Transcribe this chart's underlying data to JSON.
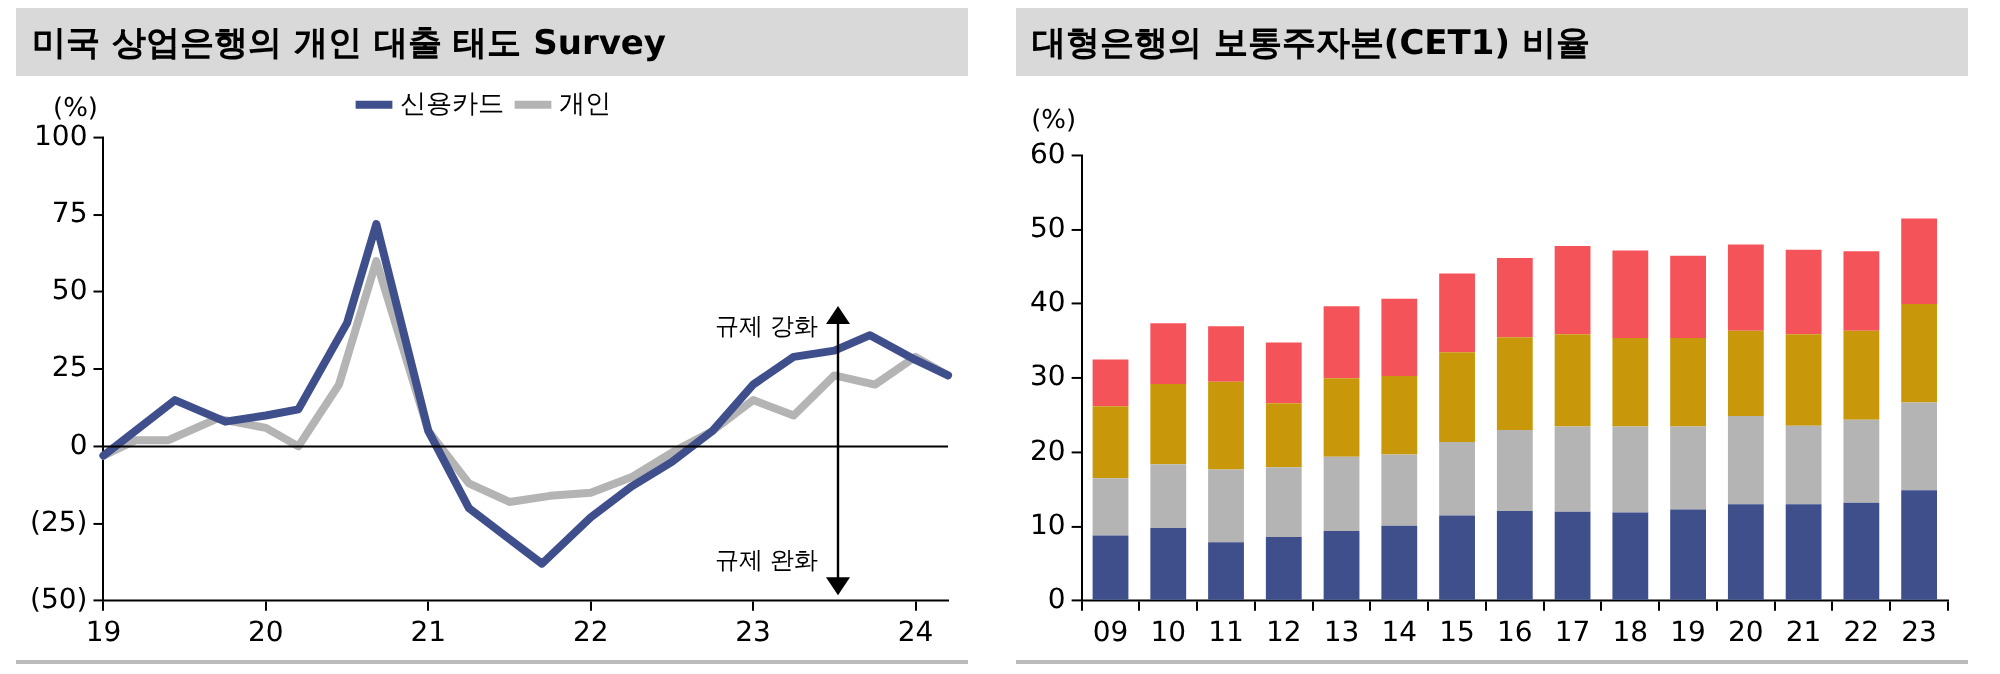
{
  "chart_data": [
    {
      "type": "line",
      "title": "미국 상업은행의 개인 대출 태도 Survey",
      "ylabel": "(%)",
      "legend": "top",
      "grid": false,
      "marker": "none",
      "line_style": "solid",
      "annotations": [
        "규제 강화",
        "규제 완화"
      ],
      "xlim": [
        2019,
        2024.2
      ],
      "xticks": [
        {
          "value": 2019,
          "label": "19"
        },
        {
          "value": 2020,
          "label": "20"
        },
        {
          "value": 2021,
          "label": "21"
        },
        {
          "value": 2022,
          "label": "22"
        },
        {
          "value": 2023,
          "label": "23"
        },
        {
          "value": 2024,
          "label": "24"
        }
      ],
      "ylim": [
        -50,
        100
      ],
      "yticks": [
        {
          "value": -50,
          "label": "(50)"
        },
        {
          "value": -25,
          "label": "(25)"
        },
        0,
        25,
        50,
        75,
        100
      ],
      "ref_lines": [
        {
          "axis": "y",
          "value": 0,
          "color": "#000000"
        }
      ],
      "series": [
        {
          "name": "신용카드",
          "color": "#3f4f8c",
          "x": [
            2019,
            2019.44,
            2019.75,
            2020,
            2020.2,
            2020.5,
            2020.68,
            2021,
            2021.25,
            2021.5,
            2021.7,
            2022,
            2022.25,
            2022.5,
            2022.75,
            2023,
            2023.25,
            2023.5,
            2023.72,
            2024,
            2024.2
          ],
          "values": [
            -3,
            15,
            8,
            10,
            12,
            40,
            72,
            5,
            -20,
            -30,
            -38,
            -23,
            -13,
            -5,
            5,
            20,
            29,
            31,
            36,
            28,
            23
          ]
        },
        {
          "name": "개인",
          "color": "#b4b4b4",
          "x": [
            2019,
            2019.2,
            2019.4,
            2019.7,
            2020,
            2020.2,
            2020.45,
            2020.68,
            2021,
            2021.25,
            2021.5,
            2021.75,
            2022,
            2022.25,
            2022.5,
            2022.75,
            2023,
            2023.25,
            2023.5,
            2023.75,
            2024,
            2024.2
          ],
          "values": [
            -3,
            2,
            2,
            9,
            6,
            0,
            20,
            60,
            5,
            -12,
            -18,
            -16,
            -15,
            -10,
            -2,
            5,
            15,
            10,
            23,
            20,
            29,
            23
          ]
        }
      ]
    },
    {
      "type": "bar",
      "stacked": true,
      "title": "대형은행의 보통주자본(CET1) 비율",
      "ylabel": "(%)",
      "grid": false,
      "categories": [
        "09",
        "10",
        "11",
        "12",
        "13",
        "14",
        "15",
        "16",
        "17",
        "18",
        "19",
        "20",
        "21",
        "22",
        "23"
      ],
      "ylim": [
        0,
        60
      ],
      "yticks": [
        0,
        10,
        20,
        30,
        40,
        50,
        60
      ],
      "series": [
        {
          "color": "#3f4f8c",
          "values": [
            8.8,
            9.8,
            7.9,
            8.6,
            9.4,
            10.1,
            11.5,
            12.1,
            12,
            11.9,
            12.3,
            13,
            13,
            13.2,
            14.9
          ]
        },
        {
          "color": "#b4b4b4",
          "values": [
            7.7,
            8.6,
            9.8,
            9.4,
            10,
            9.6,
            9.9,
            10.9,
            11.5,
            11.6,
            11.2,
            11.9,
            10.6,
            11.2,
            11.8
          ]
        },
        {
          "color": "#c8980a",
          "values": [
            9.7,
            10.8,
            11.8,
            8.6,
            10.6,
            10.6,
            12.1,
            12.5,
            12.4,
            11.9,
            11.9,
            11.5,
            12.3,
            12,
            13.3
          ]
        },
        {
          "color": "#f5535a",
          "values": [
            6.3,
            8.2,
            7.5,
            8.2,
            9.7,
            10.4,
            10.6,
            10.7,
            11.9,
            11.8,
            11.1,
            11.6,
            11.4,
            10.7,
            11.5
          ]
        }
      ]
    }
  ]
}
